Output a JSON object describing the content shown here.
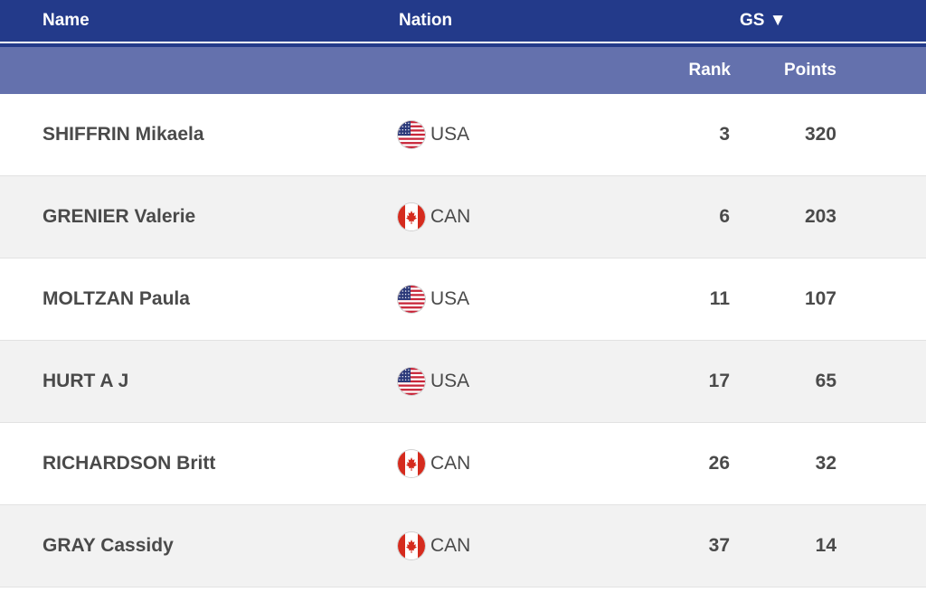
{
  "header": {
    "name_label": "Name",
    "nation_label": "Nation",
    "discipline_label": "GS ▼",
    "rank_label": "Rank",
    "points_label": "Points"
  },
  "colors": {
    "header_bg": "#233a8a",
    "subheader_bg": "#6471ad",
    "alt_row_bg": "#f2f2f2",
    "text": "#4a4a4a"
  },
  "rows": [
    {
      "name": "SHIFFRIN Mikaela",
      "flag": "usa-flag-icon",
      "nation": "USA",
      "rank": "3",
      "points": "320"
    },
    {
      "name": "GRENIER Valerie",
      "flag": "canada-flag-icon",
      "nation": "CAN",
      "rank": "6",
      "points": "203"
    },
    {
      "name": "MOLTZAN Paula",
      "flag": "usa-flag-icon",
      "nation": "USA",
      "rank": "11",
      "points": "107"
    },
    {
      "name": "HURT A J",
      "flag": "usa-flag-icon",
      "nation": "USA",
      "rank": "17",
      "points": "65"
    },
    {
      "name": "RICHARDSON Britt",
      "flag": "canada-flag-icon",
      "nation": "CAN",
      "rank": "26",
      "points": "32"
    },
    {
      "name": "GRAY Cassidy",
      "flag": "canada-flag-icon",
      "nation": "CAN",
      "rank": "37",
      "points": "14"
    }
  ]
}
